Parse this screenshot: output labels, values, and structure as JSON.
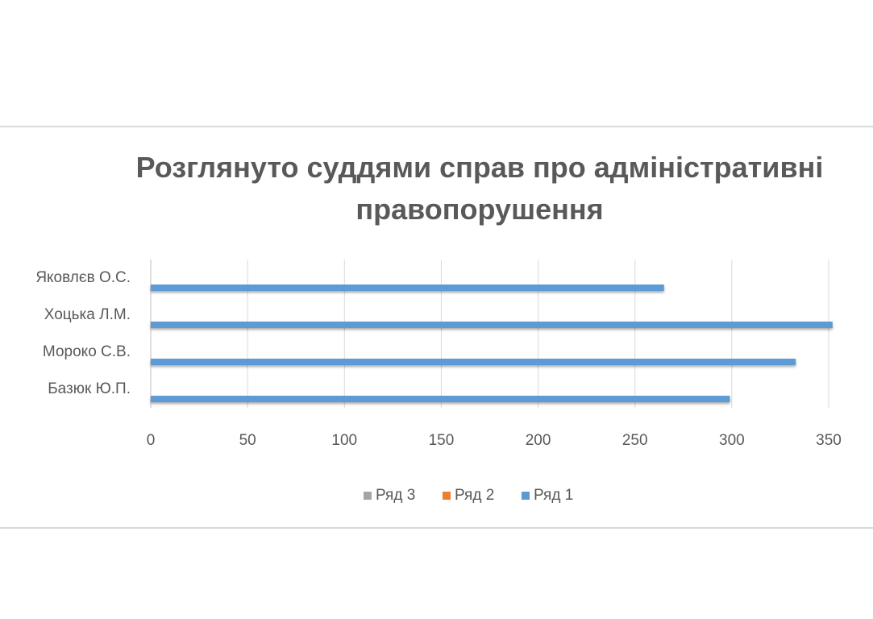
{
  "chart_data": {
    "type": "hbar",
    "title": "Розглянуто суддями справ про адміністративні правопорушення",
    "categories": [
      "Базюк Ю.П.",
      "Мороко С.В.",
      "Хоцька Л.М.",
      "Яковлєв О.С."
    ],
    "series": [
      {
        "name": "Ряд 1",
        "color": "#5b9bd5",
        "values": [
          299,
          333,
          352,
          265
        ]
      },
      {
        "name": "Ряд 2",
        "color": "#ed7d31",
        "values": [
          null,
          null,
          null,
          null
        ]
      },
      {
        "name": "Ряд 3",
        "color": "#a5a5a5",
        "values": [
          null,
          null,
          null,
          null
        ]
      }
    ],
    "xlim": [
      0,
      350
    ],
    "xticks": [
      0,
      50,
      100,
      150,
      200,
      250,
      300,
      350
    ],
    "grid": true,
    "legend": "bottom"
  }
}
